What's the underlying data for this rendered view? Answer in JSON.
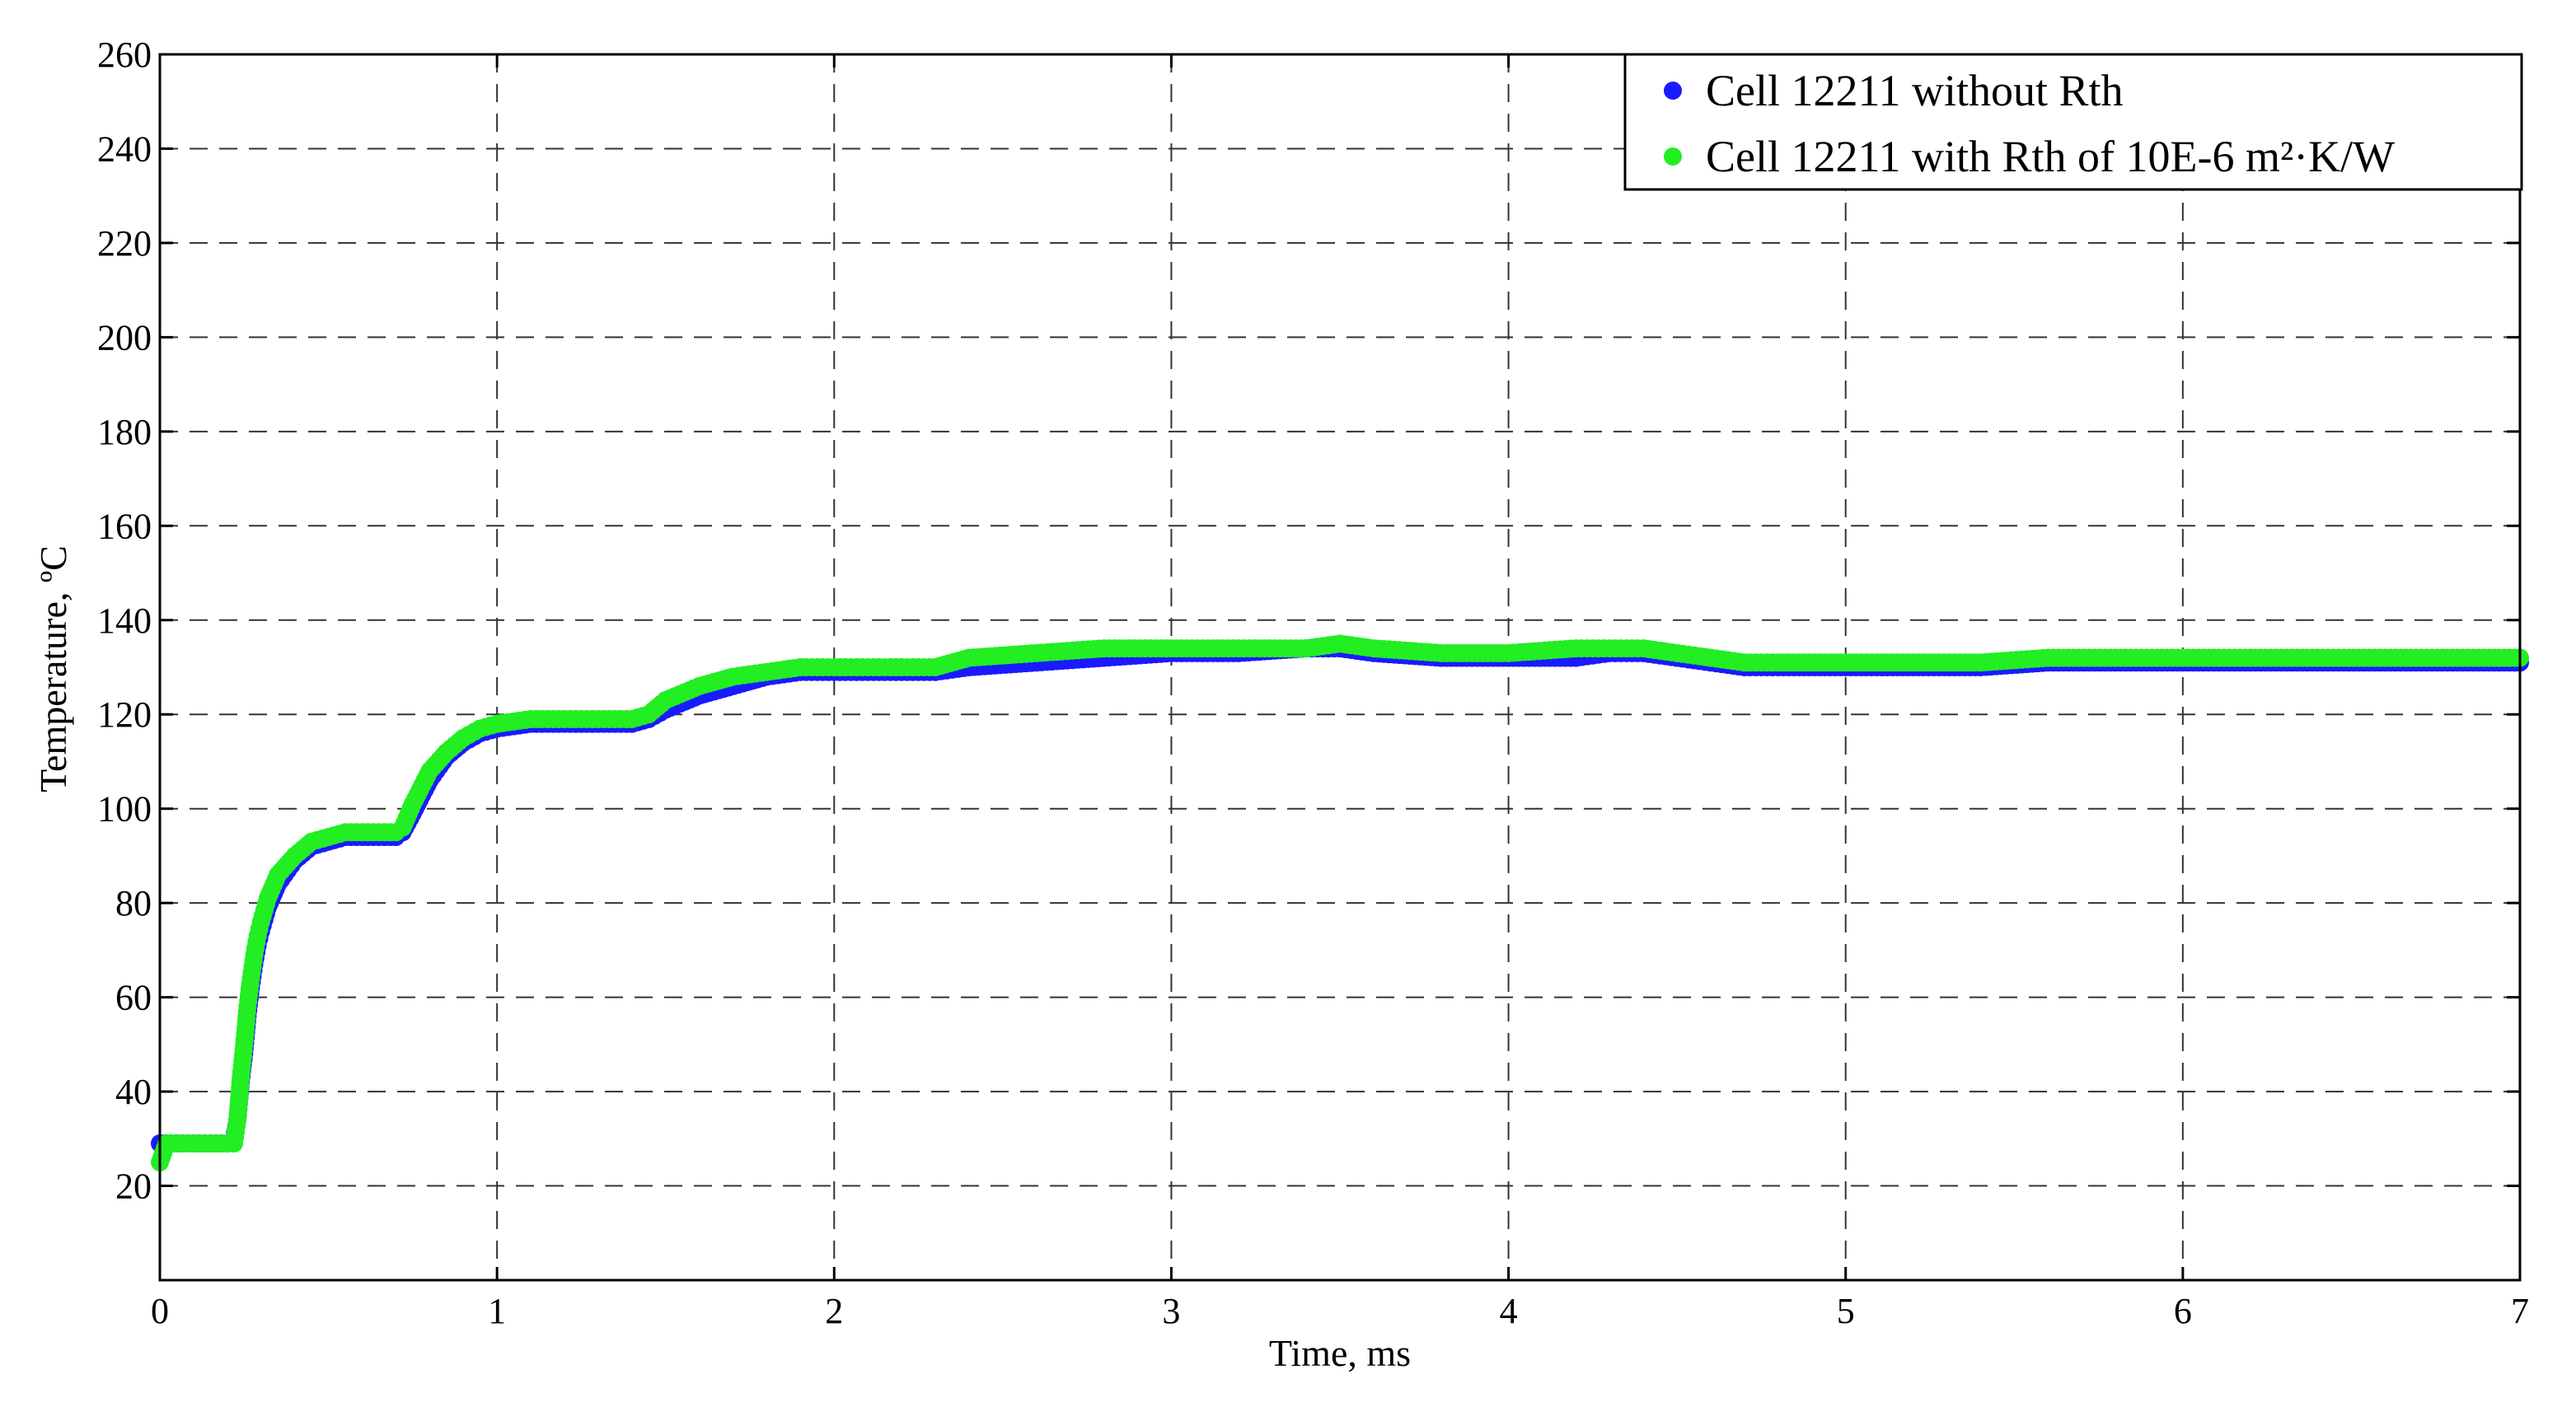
{
  "chart_data": {
    "type": "scatter",
    "title": "",
    "xlabel": "Time, ms",
    "ylabel": "Temperature, ºC",
    "xlim": [
      0,
      7
    ],
    "ylim": [
      0,
      260
    ],
    "xticks": [
      0,
      1,
      2,
      3,
      4,
      5,
      6,
      7
    ],
    "yticks": [
      20,
      40,
      60,
      80,
      100,
      120,
      140,
      160,
      180,
      200,
      220,
      240,
      260
    ],
    "grid": true,
    "legend_position": "top-right",
    "series": [
      {
        "name": "Cell 12211 without Rth",
        "color": "#1a1aff",
        "x": [
          0,
          0.05,
          0.1,
          0.15,
          0.2,
          0.22,
          0.23,
          0.24,
          0.25,
          0.26,
          0.27,
          0.28,
          0.29,
          0.3,
          0.32,
          0.35,
          0.4,
          0.45,
          0.5,
          0.55,
          0.6,
          0.65,
          0.7,
          0.72,
          0.75,
          0.8,
          0.85,
          0.9,
          0.95,
          1.0,
          1.1,
          1.2,
          1.3,
          1.4,
          1.45,
          1.5,
          1.6,
          1.7,
          1.8,
          1.9,
          2.0,
          2.1,
          2.2,
          2.3,
          2.4,
          2.6,
          2.8,
          3.0,
          3.2,
          3.4,
          3.5,
          3.6,
          3.8,
          4.0,
          4.2,
          4.3,
          4.4,
          4.5,
          4.6,
          4.7,
          4.8,
          5.0,
          5.2,
          5.4,
          5.6,
          5.8,
          6.0,
          6.2,
          6.4,
          6.6,
          6.8,
          7.0
        ],
        "y": [
          29,
          29,
          29,
          29,
          29,
          30,
          34,
          42,
          48,
          56,
          62,
          67,
          71,
          74,
          79,
          84,
          89,
          92,
          93,
          94,
          94,
          94,
          94,
          95,
          99,
          106,
          111,
          114,
          116,
          117,
          118,
          118,
          118,
          118,
          119,
          121,
          124,
          126,
          128,
          129,
          129,
          129,
          129,
          129,
          130,
          131,
          132,
          133,
          133,
          134,
          134,
          133,
          132,
          132,
          132,
          133,
          133,
          132,
          131,
          130,
          130,
          130,
          130,
          130,
          131,
          131,
          131,
          131,
          131,
          131,
          131,
          131
        ]
      },
      {
        "name": "Cell 12211 with Rth of 10E-6 m²·K/W",
        "color": "#22ee22",
        "x": [
          0,
          0.01,
          0.02,
          0.05,
          0.1,
          0.15,
          0.2,
          0.22,
          0.23,
          0.24,
          0.25,
          0.26,
          0.27,
          0.28,
          0.29,
          0.3,
          0.32,
          0.35,
          0.4,
          0.45,
          0.5,
          0.55,
          0.6,
          0.65,
          0.7,
          0.72,
          0.75,
          0.8,
          0.85,
          0.9,
          0.95,
          1.0,
          1.1,
          1.2,
          1.3,
          1.4,
          1.45,
          1.5,
          1.6,
          1.7,
          1.8,
          1.9,
          2.0,
          2.1,
          2.2,
          2.3,
          2.4,
          2.6,
          2.8,
          3.0,
          3.2,
          3.4,
          3.5,
          3.6,
          3.8,
          4.0,
          4.2,
          4.3,
          4.4,
          4.5,
          4.6,
          4.7,
          4.8,
          5.0,
          5.2,
          5.4,
          5.6,
          5.8,
          6.0,
          6.2,
          6.4,
          6.6,
          6.8,
          7.0
        ],
        "y": [
          25,
          27,
          29,
          29,
          29,
          29,
          29,
          29,
          34,
          43,
          50,
          58,
          64,
          69,
          73,
          76,
          81,
          86,
          90,
          93,
          94,
          95,
          95,
          95,
          95,
          96,
          101,
          108,
          112,
          115,
          117,
          118,
          119,
          119,
          119,
          119,
          120,
          123,
          126,
          128,
          129,
          130,
          130,
          130,
          130,
          130,
          132,
          133,
          134,
          134,
          134,
          134,
          135,
          134,
          133,
          133,
          134,
          134,
          134,
          133,
          132,
          131,
          131,
          131,
          131,
          131,
          132,
          132,
          132,
          132,
          132,
          132,
          132,
          132
        ]
      }
    ]
  }
}
